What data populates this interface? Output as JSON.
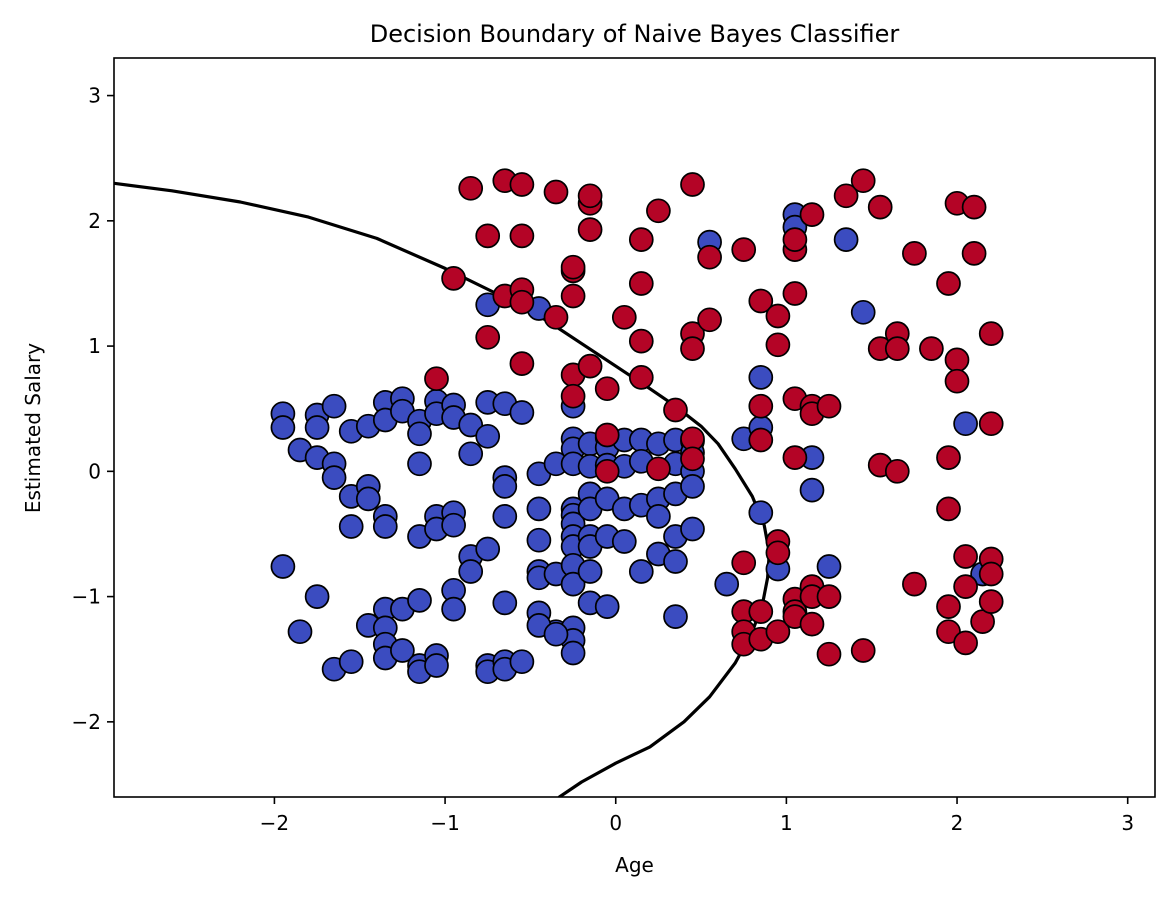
{
  "chart_data": {
    "type": "scatter",
    "title": "Decision Boundary of Naive Bayes Classifier",
    "xlabel": "Age",
    "ylabel": "Estimated Salary",
    "xlim": [
      -2.94,
      3.16
    ],
    "ylim": [
      -2.6,
      3.3
    ],
    "xticks": [
      -2,
      -1,
      0,
      1,
      2,
      3
    ],
    "yticks": [
      -2,
      -1,
      0,
      1,
      2,
      3
    ],
    "tick_labels_x": [
      "−2",
      "−1",
      "0",
      "1",
      "2",
      "3"
    ],
    "tick_labels_y": [
      "−2",
      "−1",
      "0",
      "1",
      "2",
      "3"
    ],
    "grid": false,
    "legend": "none",
    "colors": {
      "class_0": "#3b4cc0",
      "class_1": "#b40426",
      "boundary": "#000000",
      "marker_edge": "#000000"
    },
    "decision_boundary": {
      "x": [
        -2.94,
        -2.6,
        -2.2,
        -1.8,
        -1.4,
        -1.0,
        -0.7,
        -0.4,
        -0.2,
        0.0,
        0.2,
        0.35,
        0.5,
        0.6,
        0.7,
        0.8,
        0.87,
        0.9,
        0.89,
        0.86,
        0.8,
        0.7,
        0.55,
        0.4,
        0.2,
        0.0,
        -0.2,
        -0.33
      ],
      "y": [
        2.3,
        2.24,
        2.15,
        2.03,
        1.86,
        1.62,
        1.42,
        1.2,
        1.02,
        0.84,
        0.66,
        0.52,
        0.36,
        0.22,
        0.02,
        -0.2,
        -0.43,
        -0.65,
        -0.85,
        -1.06,
        -1.28,
        -1.53,
        -1.8,
        -2.0,
        -2.2,
        -2.33,
        -2.48,
        -2.6
      ]
    },
    "series": [
      {
        "class": 0,
        "points": [
          [
            -1.95,
            0.46
          ],
          [
            -1.95,
            0.35
          ],
          [
            -1.85,
            0.17
          ],
          [
            -1.75,
            0.45
          ],
          [
            -1.75,
            0.35
          ],
          [
            -1.75,
            0.11
          ],
          [
            -1.65,
            0.52
          ],
          [
            -1.65,
            0.06
          ],
          [
            -1.65,
            -0.05
          ],
          [
            -1.55,
            0.32
          ],
          [
            -1.55,
            -0.2
          ],
          [
            -1.55,
            -0.44
          ],
          [
            -1.45,
            0.36
          ],
          [
            -1.45,
            -0.12
          ],
          [
            -1.45,
            -0.22
          ],
          [
            -1.35,
            0.55
          ],
          [
            -1.35,
            0.41
          ],
          [
            -1.35,
            -0.36
          ],
          [
            -1.35,
            -0.44
          ],
          [
            -1.25,
            0.58
          ],
          [
            -1.25,
            0.48
          ],
          [
            -1.15,
            0.4
          ],
          [
            -1.15,
            0.3
          ],
          [
            -1.15,
            0.06
          ],
          [
            -1.15,
            -0.52
          ],
          [
            -1.05,
            0.56
          ],
          [
            -1.05,
            0.46
          ],
          [
            -1.05,
            -0.36
          ],
          [
            -1.05,
            -0.46
          ],
          [
            -0.95,
            0.53
          ],
          [
            -0.95,
            0.43
          ],
          [
            -0.95,
            -0.33
          ],
          [
            -0.95,
            -0.43
          ],
          [
            -0.85,
            0.37
          ],
          [
            -0.85,
            0.14
          ],
          [
            -0.85,
            -0.68
          ],
          [
            -0.85,
            -0.8
          ],
          [
            -0.75,
            0.55
          ],
          [
            -0.75,
            0.28
          ],
          [
            -0.75,
            -0.62
          ],
          [
            -0.65,
            0.54
          ],
          [
            -0.65,
            -0.05
          ],
          [
            -0.65,
            -0.12
          ],
          [
            -0.65,
            -0.36
          ],
          [
            -0.55,
            0.47
          ],
          [
            -0.45,
            -0.02
          ],
          [
            -0.45,
            -0.3
          ],
          [
            -0.45,
            -0.55
          ],
          [
            -0.45,
            -0.8
          ],
          [
            -0.45,
            -0.85
          ],
          [
            -0.35,
            0.06
          ],
          [
            -0.35,
            -0.82
          ],
          [
            -0.35,
            -1.28
          ],
          [
            -0.25,
            0.52
          ],
          [
            -0.25,
            0.26
          ],
          [
            -0.25,
            0.18
          ],
          [
            -0.25,
            0.06
          ],
          [
            -0.25,
            -0.3
          ],
          [
            -0.25,
            -0.35
          ],
          [
            -0.25,
            -0.42
          ],
          [
            -0.25,
            -0.52
          ],
          [
            -0.25,
            -0.6
          ],
          [
            -0.25,
            -0.75
          ],
          [
            -0.25,
            -0.9
          ],
          [
            -0.25,
            -1.25
          ],
          [
            -0.25,
            -1.35
          ],
          [
            -0.25,
            -1.45
          ],
          [
            -0.15,
            0.22
          ],
          [
            -0.15,
            0.04
          ],
          [
            -0.15,
            -0.18
          ],
          [
            -0.15,
            -0.3
          ],
          [
            -0.15,
            -0.52
          ],
          [
            -0.15,
            -0.6
          ],
          [
            -0.15,
            -0.8
          ],
          [
            -0.15,
            -1.05
          ],
          [
            -0.05,
            0.27
          ],
          [
            -0.05,
            0.19
          ],
          [
            -0.05,
            0.05
          ],
          [
            -0.05,
            -0.22
          ],
          [
            -0.05,
            -0.52
          ],
          [
            -0.05,
            -1.08
          ],
          [
            0.05,
            0.25
          ],
          [
            0.05,
            0.04
          ],
          [
            0.05,
            -0.3
          ],
          [
            0.05,
            -0.56
          ],
          [
            0.15,
            0.25
          ],
          [
            0.15,
            0.08
          ],
          [
            0.15,
            -0.27
          ],
          [
            0.15,
            -0.8
          ],
          [
            0.25,
            0.22
          ],
          [
            0.25,
            -0.22
          ],
          [
            0.25,
            -0.36
          ],
          [
            0.25,
            -0.66
          ],
          [
            0.35,
            0.25
          ],
          [
            0.35,
            0.06
          ],
          [
            0.35,
            -0.18
          ],
          [
            0.35,
            -0.52
          ],
          [
            0.35,
            -0.72
          ],
          [
            0.35,
            -1.16
          ],
          [
            0.45,
            0.24
          ],
          [
            0.45,
            0.15
          ],
          [
            0.45,
            0.0
          ],
          [
            0.45,
            -0.12
          ],
          [
            0.45,
            -0.46
          ],
          [
            0.55,
            1.83
          ],
          [
            0.65,
            -0.9
          ],
          [
            0.75,
            0.26
          ],
          [
            0.85,
            0.75
          ],
          [
            0.85,
            0.35
          ],
          [
            0.85,
            -0.33
          ],
          [
            0.95,
            -0.78
          ],
          [
            1.05,
            2.05
          ],
          [
            1.05,
            1.95
          ],
          [
            1.15,
            0.11
          ],
          [
            1.15,
            -0.15
          ],
          [
            1.25,
            -0.76
          ],
          [
            1.35,
            1.85
          ],
          [
            1.45,
            1.27
          ],
          [
            2.05,
            0.38
          ],
          [
            2.15,
            -0.82
          ],
          [
            -1.95,
            -0.76
          ],
          [
            -1.85,
            -1.28
          ],
          [
            -1.75,
            -1.0
          ],
          [
            -1.65,
            -1.58
          ],
          [
            -1.55,
            -1.52
          ],
          [
            -1.45,
            -1.23
          ],
          [
            -1.35,
            -1.1
          ],
          [
            -1.35,
            -1.25
          ],
          [
            -1.35,
            -1.38
          ],
          [
            -1.35,
            -1.49
          ],
          [
            -1.25,
            -1.1
          ],
          [
            -1.25,
            -1.43
          ],
          [
            -1.15,
            -1.03
          ],
          [
            -1.15,
            -1.55
          ],
          [
            -1.15,
            -1.6
          ],
          [
            -1.05,
            -1.47
          ],
          [
            -1.05,
            -1.55
          ],
          [
            -0.95,
            -0.95
          ],
          [
            -0.95,
            -1.1
          ],
          [
            -0.75,
            -1.55
          ],
          [
            -0.75,
            -1.6
          ],
          [
            -0.65,
            -1.05
          ],
          [
            -0.65,
            -1.52
          ],
          [
            -0.65,
            -1.58
          ],
          [
            -0.55,
            -1.52
          ],
          [
            -0.45,
            -1.13
          ],
          [
            -0.45,
            -1.23
          ],
          [
            -0.35,
            -1.3
          ],
          [
            -0.75,
            1.33
          ],
          [
            -0.45,
            1.3
          ]
        ]
      },
      {
        "class": 1,
        "points": [
          [
            -0.85,
            2.26
          ],
          [
            -0.65,
            2.32
          ],
          [
            -0.55,
            2.29
          ],
          [
            -0.35,
            2.23
          ],
          [
            -0.15,
            2.14
          ],
          [
            -0.15,
            2.2
          ],
          [
            0.25,
            2.08
          ],
          [
            0.45,
            2.29
          ],
          [
            -0.75,
            1.88
          ],
          [
            -0.55,
            1.88
          ],
          [
            -0.15,
            1.93
          ],
          [
            0.15,
            1.85
          ],
          [
            0.55,
            1.71
          ],
          [
            0.75,
            1.77
          ],
          [
            1.05,
            1.77
          ],
          [
            1.05,
            1.85
          ],
          [
            1.15,
            2.05
          ],
          [
            1.35,
            2.2
          ],
          [
            1.45,
            2.32
          ],
          [
            1.55,
            2.11
          ],
          [
            1.75,
            1.74
          ],
          [
            2.0,
            2.14
          ],
          [
            2.1,
            2.11
          ],
          [
            2.1,
            1.74
          ],
          [
            -0.95,
            1.54
          ],
          [
            -0.65,
            1.4
          ],
          [
            -0.55,
            1.45
          ],
          [
            -0.55,
            1.35
          ],
          [
            -0.25,
            1.4
          ],
          [
            -0.25,
            1.6
          ],
          [
            -0.25,
            1.63
          ],
          [
            0.05,
            1.23
          ],
          [
            0.15,
            1.5
          ],
          [
            0.85,
            1.36
          ],
          [
            0.95,
            1.24
          ],
          [
            1.05,
            1.42
          ],
          [
            1.95,
            1.5
          ],
          [
            -0.75,
            1.07
          ],
          [
            -0.55,
            0.86
          ],
          [
            -0.35,
            1.23
          ],
          [
            0.15,
            1.04
          ],
          [
            0.45,
            1.1
          ],
          [
            0.45,
            0.98
          ],
          [
            0.55,
            1.21
          ],
          [
            0.95,
            1.01
          ],
          [
            1.55,
            0.98
          ],
          [
            1.65,
            1.1
          ],
          [
            1.65,
            0.98
          ],
          [
            1.85,
            0.98
          ],
          [
            2.0,
            0.89
          ],
          [
            2.0,
            0.72
          ],
          [
            2.2,
            1.1
          ],
          [
            -1.05,
            0.74
          ],
          [
            -0.25,
            0.77
          ],
          [
            -0.25,
            0.6
          ],
          [
            -0.15,
            0.84
          ],
          [
            -0.05,
            0.66
          ],
          [
            0.15,
            0.75
          ],
          [
            0.35,
            0.49
          ],
          [
            0.85,
            0.52
          ],
          [
            1.05,
            0.58
          ],
          [
            1.15,
            0.52
          ],
          [
            1.15,
            0.46
          ],
          [
            1.25,
            0.52
          ],
          [
            2.2,
            0.38
          ],
          [
            -0.05,
            0.29
          ],
          [
            -0.05,
            0.0
          ],
          [
            0.25,
            0.02
          ],
          [
            0.45,
            0.26
          ],
          [
            0.45,
            0.1
          ],
          [
            0.85,
            0.25
          ],
          [
            1.05,
            0.11
          ],
          [
            1.55,
            0.05
          ],
          [
            1.65,
            0.0
          ],
          [
            1.95,
            0.11
          ],
          [
            1.95,
            -0.3
          ],
          [
            0.75,
            -0.73
          ],
          [
            0.95,
            -0.56
          ],
          [
            0.95,
            -0.65
          ],
          [
            0.75,
            -1.12
          ],
          [
            0.75,
            -1.28
          ],
          [
            0.75,
            -1.38
          ],
          [
            0.85,
            -1.12
          ],
          [
            0.85,
            -1.34
          ],
          [
            0.95,
            -1.28
          ],
          [
            1.05,
            -1.02
          ],
          [
            1.05,
            -1.12
          ],
          [
            1.05,
            -1.16
          ],
          [
            1.15,
            -0.92
          ],
          [
            1.15,
            -1.0
          ],
          [
            1.15,
            -1.22
          ],
          [
            1.25,
            -1.0
          ],
          [
            1.25,
            -1.46
          ],
          [
            1.45,
            -1.43
          ],
          [
            1.75,
            -0.9
          ],
          [
            1.95,
            -1.08
          ],
          [
            1.95,
            -1.28
          ],
          [
            2.05,
            -0.68
          ],
          [
            2.05,
            -0.92
          ],
          [
            2.05,
            -1.37
          ],
          [
            2.15,
            -1.2
          ],
          [
            2.2,
            -0.7
          ],
          [
            2.2,
            -0.82
          ],
          [
            2.2,
            -1.04
          ]
        ]
      }
    ]
  }
}
